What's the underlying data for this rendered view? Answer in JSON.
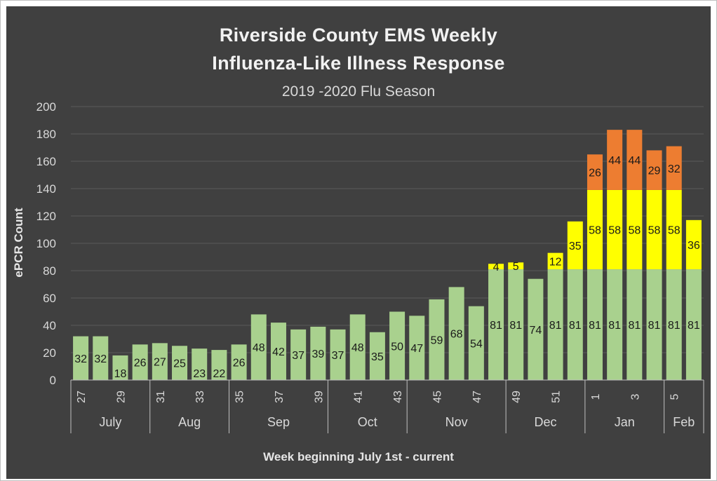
{
  "chart_data": {
    "type": "bar",
    "stacked": true,
    "title": "Riverside County EMS Weekly",
    "title_line2": "Influenza-Like Illness Response",
    "subtitle": "2019 -2020 Flu Season",
    "xlabel": "Week beginning July 1st - current",
    "ylabel": "ePCR Count",
    "ylim": [
      0,
      200
    ],
    "yticks": [
      0,
      20,
      40,
      60,
      80,
      100,
      120,
      140,
      160,
      180,
      200
    ],
    "grid": true,
    "weeks": [
      27,
      28,
      29,
      30,
      31,
      32,
      33,
      34,
      35,
      36,
      37,
      38,
      39,
      40,
      41,
      42,
      43,
      44,
      45,
      46,
      47,
      48,
      49,
      50,
      51,
      52,
      1,
      2,
      3,
      4,
      5,
      6
    ],
    "week_tick_labels": [
      "27",
      "",
      "29",
      "",
      "31",
      "",
      "33",
      "",
      "35",
      "",
      "37",
      "",
      "39",
      "",
      "41",
      "",
      "43",
      "",
      "45",
      "",
      "47",
      "",
      "49",
      "",
      "51",
      "",
      "1",
      "",
      "3",
      "",
      "5",
      ""
    ],
    "months": [
      {
        "label": "July",
        "start": 0,
        "count": 4
      },
      {
        "label": "Aug",
        "start": 4,
        "count": 4
      },
      {
        "label": "Sep",
        "start": 8,
        "count": 5
      },
      {
        "label": "Oct",
        "start": 13,
        "count": 4
      },
      {
        "label": "Nov",
        "start": 17,
        "count": 5
      },
      {
        "label": "Dec",
        "start": 22,
        "count": 4
      },
      {
        "label": "Jan",
        "start": 26,
        "count": 4
      },
      {
        "label": "Feb",
        "start": 30,
        "count": 2
      }
    ],
    "series": [
      {
        "color": "#a9d18e",
        "values": [
          32,
          32,
          18,
          26,
          27,
          25,
          23,
          22,
          26,
          48,
          42,
          37,
          39,
          37,
          48,
          35,
          50,
          47,
          59,
          68,
          54,
          81,
          81,
          74,
          81,
          81,
          81,
          81,
          81,
          81,
          81,
          81
        ],
        "labels": [
          "32",
          "32",
          "18",
          "26",
          "27",
          "25",
          "23",
          "22",
          "26",
          "48",
          "42",
          "37",
          "39",
          "37",
          "48",
          "35",
          "50",
          "47",
          "59",
          "68",
          "54",
          "81",
          "81",
          "74",
          "81",
          "81",
          "81",
          "81",
          "81",
          "81",
          "81",
          "81"
        ]
      },
      {
        "color": "#ffff00",
        "values": [
          0,
          0,
          0,
          0,
          0,
          0,
          0,
          0,
          0,
          0,
          0,
          0,
          0,
          0,
          0,
          0,
          0,
          0,
          0,
          0,
          0,
          4,
          5,
          0,
          12,
          35,
          58,
          58,
          58,
          58,
          58,
          36
        ],
        "labels": [
          "",
          "",
          "",
          "",
          "",
          "",
          "",
          "",
          "",
          "",
          "",
          "",
          "",
          "",
          "",
          "",
          "",
          "",
          "",
          "",
          "",
          "4",
          "5",
          "",
          "12",
          "35",
          "58",
          "58",
          "58",
          "58",
          "58",
          "36"
        ]
      },
      {
        "color": "#ed7d31",
        "values": [
          0,
          0,
          0,
          0,
          0,
          0,
          0,
          0,
          0,
          0,
          0,
          0,
          0,
          0,
          0,
          0,
          0,
          0,
          0,
          0,
          0,
          0,
          0,
          0,
          0,
          0,
          26,
          44,
          44,
          29,
          32,
          0
        ],
        "labels": [
          "",
          "",
          "",
          "",
          "",
          "",
          "",
          "",
          "",
          "",
          "",
          "",
          "",
          "",
          "",
          "",
          "",
          "",
          "",
          "",
          "",
          "",
          "",
          "",
          "",
          "",
          "26",
          "44",
          "44",
          "29",
          "32",
          ""
        ]
      }
    ],
    "colors": {
      "background": "#404040",
      "grid": "#5a5a5a",
      "axis_text": "#d9d9d9",
      "data_label": "#1a1a1a"
    }
  }
}
